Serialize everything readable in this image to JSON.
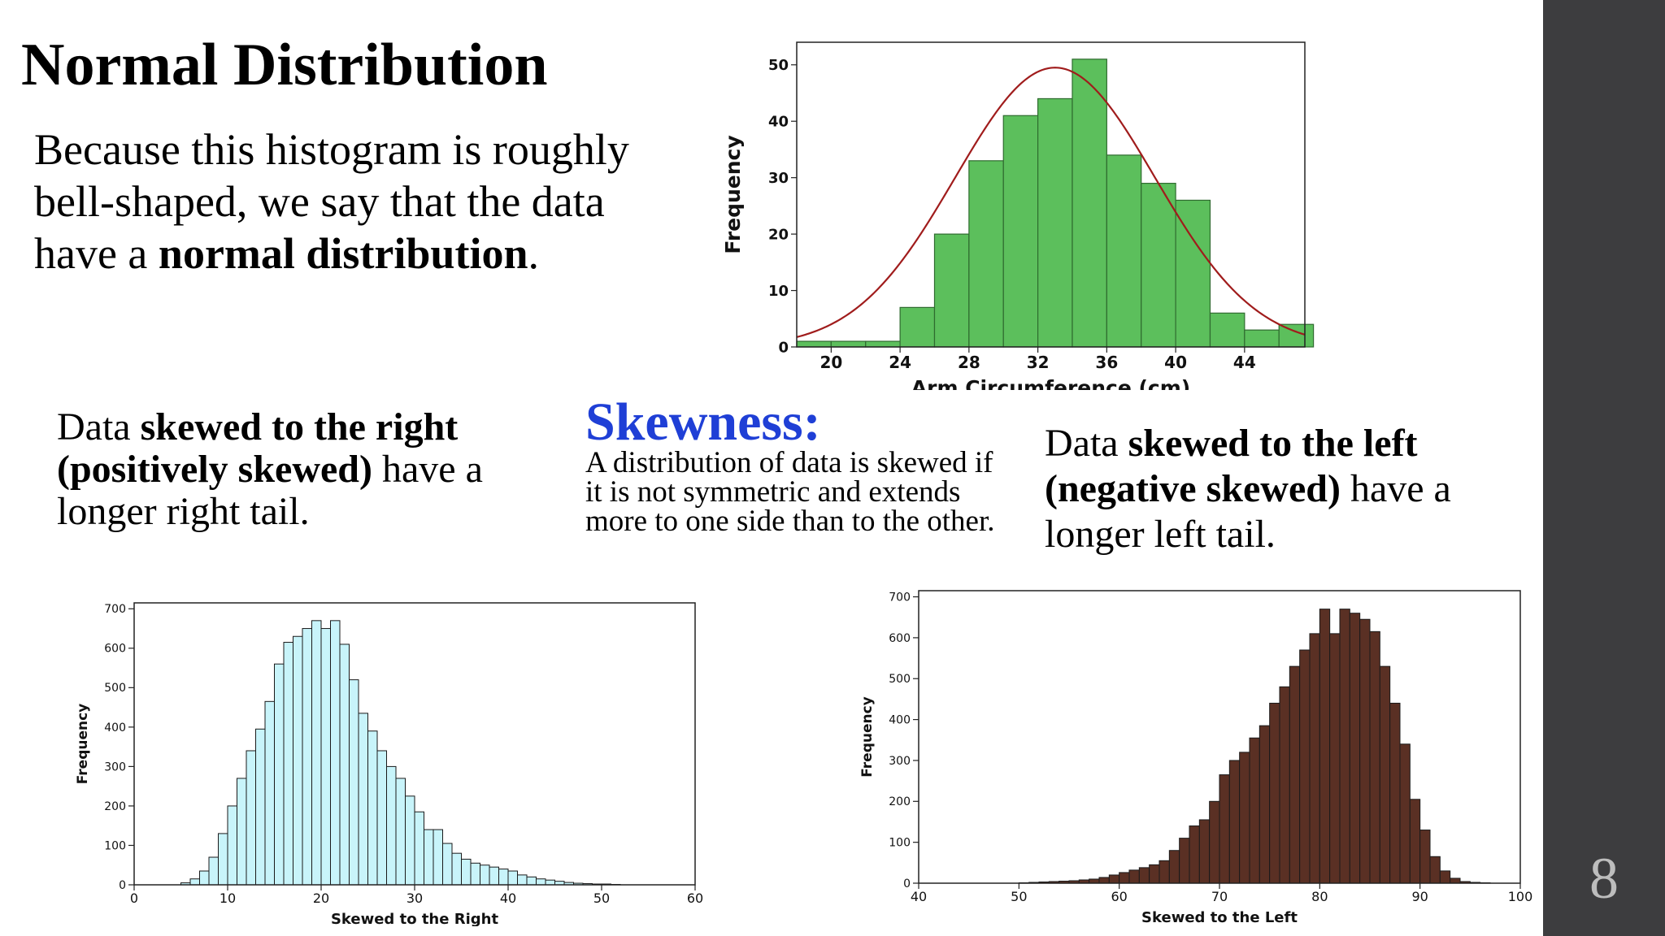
{
  "slide": {
    "title": "Normal Distribution",
    "normal_para": {
      "p1": "Because this histogram is roughly bell-shaped, we say that the data have a ",
      "bold": "normal distribution",
      "p2": "."
    },
    "right_text": {
      "p1": "Data ",
      "bold": "skewed to the right (positively skewed)",
      "p2": " have a longer right tail."
    },
    "skewness_title": "Skewness:",
    "skewness_def": "A distribution of data is skewed if it is not symmetric and extends more to one side than to the other.",
    "left_text": {
      "p1": "Data ",
      "bold": "skewed to the left (negative skewed)",
      "p2": " have a longer left tail."
    },
    "page_number": "8"
  },
  "colors": {
    "sidebar": "#3d3d3f",
    "skewness_title": "#1f3fd6",
    "normal_bars": "#5cbf5c",
    "normal_curve": "#a01c1c",
    "right_bars": "#c8f4fa",
    "left_bars": "#5a3024"
  },
  "chart_data": [
    {
      "type": "bar",
      "id": "normal",
      "xlabel": "Arm Circumference (cm)",
      "ylabel": "Frequency",
      "xlim": [
        18,
        47.5
      ],
      "ylim": [
        0,
        54
      ],
      "xticks": [
        20,
        24,
        28,
        32,
        36,
        40,
        44
      ],
      "yticks": [
        0,
        10,
        20,
        30,
        40,
        50
      ],
      "bin_start": 18,
      "bin_width": 2,
      "values": [
        1,
        1,
        1,
        7,
        20,
        33,
        41,
        44,
        51,
        34,
        29,
        26,
        6,
        3,
        4
      ],
      "curve": {
        "type": "normal",
        "mean": 33,
        "sd": 5.8,
        "peak": 49.5
      },
      "grid": false
    },
    {
      "type": "bar",
      "id": "right-skewed",
      "xlabel": "Skewed to the Right",
      "ylabel": "Frequency",
      "xlim": [
        0,
        60
      ],
      "ylim": [
        0,
        715
      ],
      "xticks": [
        0,
        10,
        20,
        30,
        40,
        50,
        60
      ],
      "yticks": [
        0,
        100,
        200,
        300,
        400,
        500,
        600,
        700
      ],
      "bin_start": 5,
      "bin_width": 1,
      "values": [
        5,
        15,
        35,
        70,
        130,
        200,
        270,
        340,
        395,
        465,
        560,
        615,
        630,
        650,
        670,
        650,
        670,
        610,
        520,
        435,
        390,
        340,
        300,
        270,
        225,
        185,
        140,
        140,
        105,
        80,
        65,
        55,
        50,
        45,
        40,
        35,
        25,
        20,
        15,
        12,
        9,
        6,
        4,
        3,
        2,
        2,
        1
      ],
      "grid": false
    },
    {
      "type": "bar",
      "id": "left-skewed",
      "xlabel": "Skewed to the Left",
      "ylabel": "Frequency",
      "xlim": [
        40,
        100
      ],
      "ylim": [
        0,
        715
      ],
      "xticks": [
        40,
        50,
        60,
        70,
        80,
        90,
        100
      ],
      "yticks": [
        0,
        100,
        200,
        300,
        400,
        500,
        600,
        700
      ],
      "bin_start": 50,
      "bin_width": 1,
      "values": [
        1,
        2,
        3,
        4,
        5,
        6,
        8,
        10,
        14,
        20,
        26,
        32,
        38,
        45,
        55,
        80,
        110,
        140,
        155,
        200,
        265,
        300,
        320,
        355,
        385,
        440,
        480,
        530,
        570,
        610,
        670,
        610,
        670,
        660,
        645,
        615,
        530,
        440,
        340,
        205,
        130,
        65,
        30,
        12,
        4,
        2,
        1
      ],
      "grid": false
    }
  ]
}
